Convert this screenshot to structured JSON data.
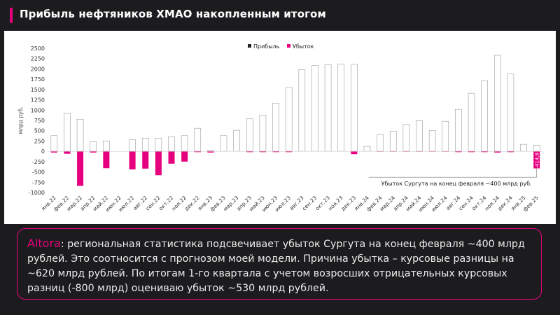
{
  "header": {
    "title": "Прибыль нефтяников ХМАО накопленным итогом"
  },
  "colors": {
    "accent": "#e6007e",
    "profit_bar": "#ffffff",
    "loss_bar": "#e6007e",
    "background": "#1c1c1f"
  },
  "comment": {
    "brand": "Altora",
    "text": ": региональная статистика подсвечивает убыток Сургута на конец февраля ~400 млрд рублей. Это соотносится с прогнозом моей модели. Причина убытка – курсовые разницы на ~620 млрд рублей. По итогам 1-го квартала с учетом возросших отрицательных курсовых разниц (-800 млрд) оцениваю убыток ~530 млрд рублей."
  },
  "chart_data": {
    "type": "bar",
    "title": "Прибыль нефтяников ХМАО накопленным итогом",
    "ylabel": "млрд руб.",
    "xlabel": "",
    "ylim": [
      -1000,
      2500
    ],
    "yticks": [
      -1000,
      -750,
      -500,
      -250,
      0,
      250,
      500,
      750,
      1000,
      1250,
      1500,
      1750,
      2000,
      2250,
      2500
    ],
    "grid": false,
    "legend_position": "top-right",
    "categories": [
      "янв.22",
      "фев.22",
      "мар.22",
      "апр.22",
      "май.22",
      "июн.22",
      "июл.22",
      "авг.22",
      "сен.22",
      "окт.22",
      "ноя.22",
      "дек.22",
      "янв.23",
      "фев.23",
      "мар.23",
      "апр.23",
      "май.23",
      "июн.23",
      "июл.23",
      "авг.23",
      "сен.23",
      "окт.23",
      "ноя.23",
      "дек.23",
      "янв.24",
      "фев.24",
      "мар.24",
      "апр.24",
      "май.24",
      "июн.24",
      "июл.24",
      "авг.24",
      "сен.24",
      "окт.24",
      "ноя.24",
      "дек.24",
      "янв.25",
      "фев.25"
    ],
    "visible_x_labels": [
      "янв.22",
      "фев.22",
      "мар.22",
      "апр.22",
      "май.22",
      "июн.22",
      "июл.22",
      "авг.22",
      "сен.22",
      "окт.22",
      "ноя.22",
      "дек.22",
      "янв.23",
      "фев.23",
      "мар.23",
      "апр.23",
      "май.23",
      "июн.23",
      "июл.23",
      "авг.23",
      "сен.23",
      "окт.23",
      "ноя.23",
      "дек.23",
      "янв.24",
      "фев.24",
      "мар.24",
      "апр.24",
      "май.24",
      "июн.24",
      "июл.24",
      "авг.24",
      "сен.24",
      "окт.24",
      "ноя.24",
      "дек.24",
      "янв.25",
      "фев.25"
    ],
    "series": [
      {
        "name": "Прибыль",
        "color": "#ffffff",
        "values": [
          380,
          920,
          780,
          230,
          250,
          null,
          280,
          320,
          320,
          350,
          380,
          560,
          30,
          380,
          510,
          790,
          880,
          1170,
          1550,
          1980,
          2080,
          2100,
          2120,
          2110,
          120,
          410,
          490,
          650,
          740,
          500,
          730,
          1020,
          1410,
          1710,
          2330,
          1880,
          170,
          150
        ]
      },
      {
        "name": "Убыток",
        "color": "#e6007e",
        "values": [
          -30,
          -60,
          -840,
          -30,
          -410,
          null,
          -440,
          -420,
          -580,
          -300,
          -250,
          -20,
          -30,
          0,
          0,
          -20,
          -20,
          -20,
          -20,
          0,
          0,
          0,
          0,
          -70,
          0,
          -10,
          -10,
          -10,
          -10,
          -10,
          -10,
          -20,
          -20,
          -20,
          -30,
          -20,
          0,
          -414.8
        ]
      }
    ],
    "data_labels": [
      {
        "category": "фев.25",
        "series": "Убыток",
        "text": "-414,8"
      }
    ],
    "annotations": [
      {
        "category": "фев.25",
        "text": "Убыток Сургута на конец февраля ~400 млрд руб."
      }
    ]
  }
}
